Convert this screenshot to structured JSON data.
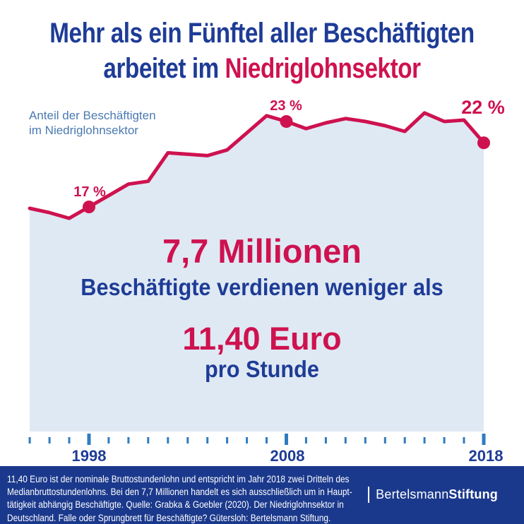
{
  "title": {
    "line1": "Mehr als ein Fünftel aller Beschäftigten",
    "line2_prefix": "arbeitet im ",
    "line2_highlight": "Niedriglohnsektor"
  },
  "chart": {
    "label_line1": "Anteil der Beschäftigten",
    "label_line2": "im Niedriglohnsektor"
  },
  "chart_data": {
    "type": "area",
    "title": "Anteil der Beschäftigten im Niedriglohnsektor",
    "x": [
      1995,
      1996,
      1997,
      1998,
      1999,
      2000,
      2001,
      2002,
      2003,
      2004,
      2005,
      2006,
      2007,
      2008,
      2009,
      2010,
      2011,
      2012,
      2013,
      2014,
      2015,
      2016,
      2017,
      2018
    ],
    "values": [
      16.9,
      16.6,
      16.2,
      17.0,
      17.8,
      18.6,
      18.8,
      20.8,
      20.7,
      20.6,
      21.0,
      22.2,
      23.4,
      23.0,
      22.5,
      22.9,
      23.2,
      23.0,
      22.7,
      22.3,
      23.6,
      23.0,
      23.1,
      21.5
    ],
    "unit": "%",
    "labeled_points": [
      {
        "year": 1998,
        "label": "17 %"
      },
      {
        "year": 2008,
        "label": "23 %"
      },
      {
        "year": 2018,
        "label": "22 %"
      }
    ],
    "x_tick_labels": [
      "1998",
      "2008",
      "2018"
    ],
    "x_range": [
      1995,
      2018
    ],
    "grid": false,
    "legend": false
  },
  "center": {
    "line1": "7,7 Millionen",
    "line2": "Beschäftigte verdienen weniger als",
    "line3": "11,40 Euro",
    "line4": "pro Stunde"
  },
  "footer": {
    "lines": [
      "11,40 Euro ist der nominale Bruttostundenlohn und entspricht im Jahr 2018 zwei Dritteln des",
      "Medianbruttostundenlohns. Bei den 7,7 Millionen handelt es sich ausschließlich um in Haupt-",
      "tätigkeit abhängig Beschäftigte. Quelle: Grabka & Goebler (2020). Der Niedriglohnsektor in",
      "Deutschland. Falle oder Sprungbrett für Beschäftigte? Gütersloh: Bertelsmann Stiftung."
    ],
    "logo_regular": "Bertelsmann",
    "logo_bold": "Stiftung"
  },
  "colors": {
    "navy": "#1e3c96",
    "crimson": "#ce124f",
    "area_fill": "#dfe9f4",
    "label_blue": "#4a79b1",
    "tick_blue": "#2f7cc0",
    "footer_bg": "#1b398c",
    "white": "#ffffff"
  }
}
